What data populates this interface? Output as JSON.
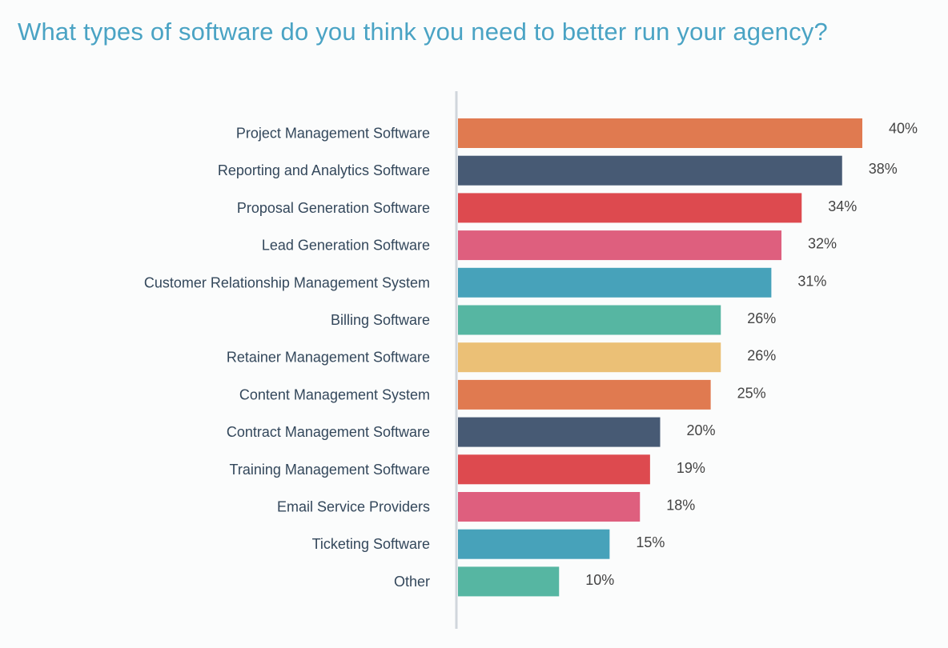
{
  "chart_data": {
    "type": "bar",
    "orientation": "horizontal",
    "title": "What types of software do you think you need to better run your agency?",
    "xlabel": "",
    "ylabel": "",
    "xlim": [
      0,
      40
    ],
    "grid": false,
    "categories": [
      "Project Management Software",
      "Reporting and Analytics Software",
      "Proposal Generation Software",
      "Lead Generation Software",
      "Customer Relationship Management System",
      "Billing Software",
      "Retainer Management Software",
      "Content Management System",
      "Contract Management Software",
      "Training Management Software",
      "Email Service Providers",
      "Ticketing Software",
      "Other"
    ],
    "values": [
      40,
      38,
      34,
      32,
      31,
      26,
      26,
      25,
      20,
      19,
      18,
      15,
      10
    ],
    "value_labels": [
      "40%",
      "38%",
      "34%",
      "32%",
      "31%",
      "26%",
      "26%",
      "25%",
      "20%",
      "19%",
      "18%",
      "15%",
      "10%"
    ],
    "colors": [
      "#e07a50",
      "#475a74",
      "#dd4a4f",
      "#de5f7e",
      "#47a2ba",
      "#56b6a2",
      "#ebc076",
      "#e07a50",
      "#475a74",
      "#dd4a4f",
      "#de5f7e",
      "#47a2ba",
      "#56b6a2"
    ]
  }
}
